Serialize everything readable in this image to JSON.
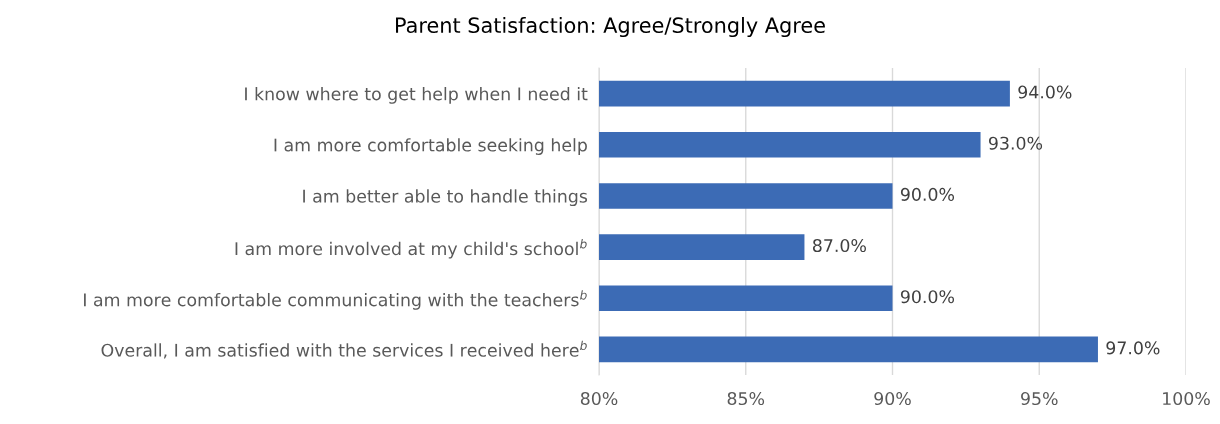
{
  "chart_data": {
    "type": "bar",
    "orientation": "horizontal",
    "title": "Parent Satisfaction: Agree/Strongly Agree",
    "categories": [
      "I know where to get help when I need it",
      "I am more comfortable seeking help",
      "I am better able to handle things",
      "I am more involved at my child's school$^{b}$",
      "I am more comfortable communicating with the teachers$^{b}$",
      "Overall, I am satisfied with the services I received here$^{b}$"
    ],
    "values": [
      94.0,
      93.0,
      90.0,
      87.0,
      90.0,
      97.0
    ],
    "value_labels": [
      "94.0%",
      "93.0%",
      "90.0%",
      "87.0%",
      "90.0%",
      "97.0%"
    ],
    "color": "#3c6bb5",
    "xlim": [
      80,
      100
    ],
    "xticks": [
      {
        "value": 80,
        "label": "80%"
      },
      {
        "value": 85,
        "label": "85%"
      },
      {
        "value": 90,
        "label": "90%"
      },
      {
        "value": 95,
        "label": "95%"
      },
      {
        "value": 100,
        "label": "100%"
      }
    ],
    "grid": "x",
    "legend": false
  }
}
